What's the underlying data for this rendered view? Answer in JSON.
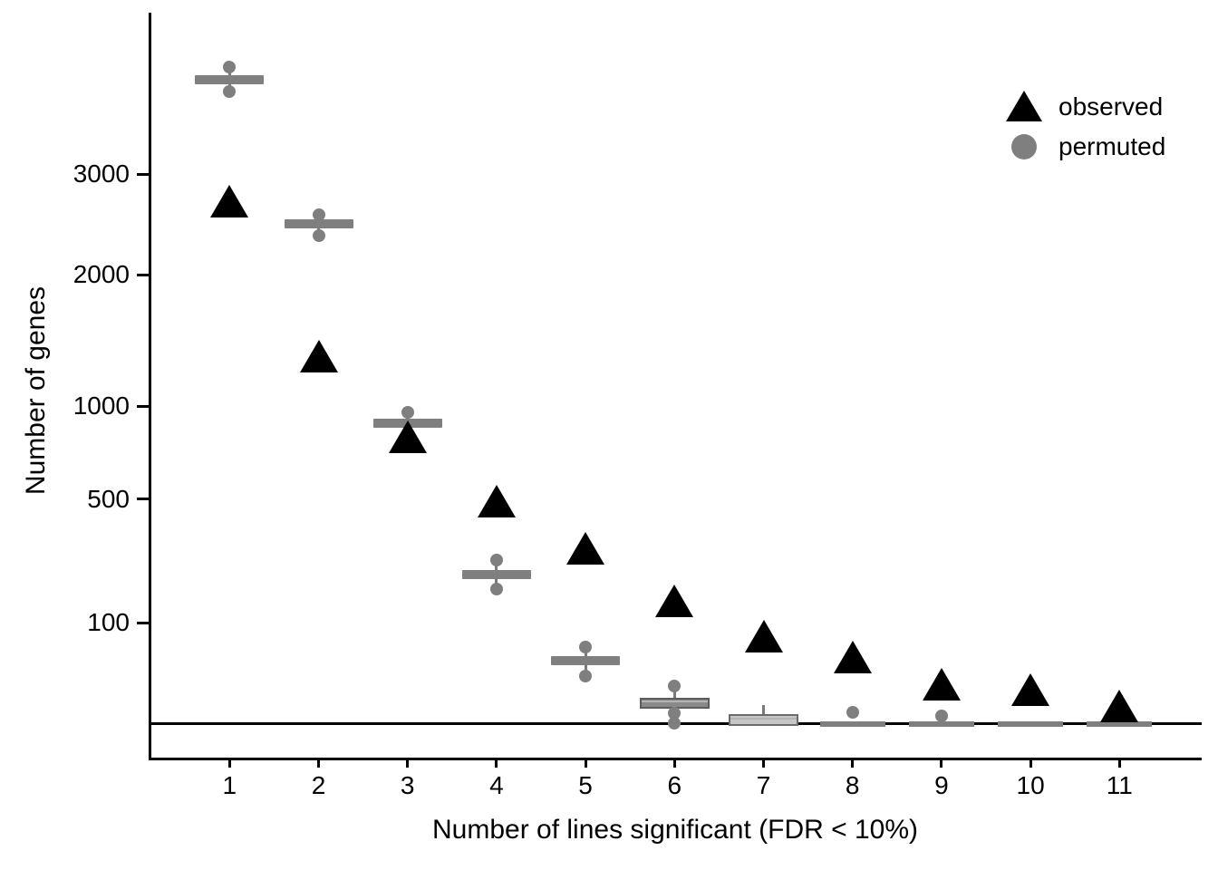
{
  "chart_data": {
    "type": "scatter",
    "title": "",
    "xlabel": "Number of lines significant (FDR < 10%)",
    "ylabel": "Number of genes",
    "yscale": "sqrt",
    "ylim": [
      0,
      5000
    ],
    "yticks": [
      100,
      500,
      1000,
      2000,
      3000
    ],
    "ytick_labels": [
      "100",
      "500",
      "1000",
      "2000",
      "3000"
    ],
    "x_categories": [
      "1",
      "2",
      "3",
      "4",
      "5",
      "6",
      "7",
      "8",
      "9",
      "10",
      "11"
    ],
    "grid": false,
    "hline": 0,
    "legend_position": "top-right-inside",
    "series": [
      {
        "name": "observed",
        "marker": "triangle",
        "color": "#000000",
        "values": [
          2715,
          1340,
          818,
          490,
          305,
          150,
          75,
          43,
          15,
          11,
          3
        ]
      },
      {
        "name": "permuted",
        "marker": "circle",
        "color": "#7f7f7f",
        "boxplots": [
          {
            "x": 1,
            "median": 4120,
            "box": null,
            "whisker": [
              3975,
              4290
            ],
            "outliers": [
              4290,
              3975
            ],
            "style": "bar"
          },
          {
            "x": 2,
            "median": 2480,
            "box": null,
            "whisker": [
              2365,
              2575
            ],
            "outliers": [
              2575,
              2365
            ],
            "style": "bar"
          },
          {
            "x": 3,
            "median": 895,
            "box": null,
            "whisker": [
              895,
              960
            ],
            "outliers": [
              960
            ],
            "style": "bar"
          },
          {
            "x": 4,
            "median": 219,
            "box": null,
            "whisker": [
              179,
              264
            ],
            "outliers": [
              264,
              179
            ],
            "style": "bar"
          },
          {
            "x": 5,
            "median": 39,
            "box": null,
            "whisker": [
              22,
              57
            ],
            "outliers": [
              57,
              22
            ],
            "style": "bar"
          },
          {
            "x": 6,
            "median": 4.8,
            "box": [
              3.1,
              6.4
            ],
            "whisker": [
              0,
              13.5
            ],
            "outliers": [
              13.5,
              1.0,
              0
            ],
            "style": "solid"
          },
          {
            "x": 7,
            "median": 0.2,
            "box": [
              0,
              0.9
            ],
            "whisker": [
              0,
              3.2
            ],
            "outliers": [],
            "style": "light"
          },
          {
            "x": 8,
            "median": 0,
            "box": null,
            "whisker": null,
            "outliers": [
              1.1
            ],
            "style": "flat"
          },
          {
            "x": 9,
            "median": 0,
            "box": null,
            "whisker": null,
            "outliers": [
              0.55
            ],
            "style": "flat"
          },
          {
            "x": 10,
            "median": 0,
            "box": null,
            "whisker": null,
            "outliers": [],
            "style": "flat"
          },
          {
            "x": 11,
            "median": 0,
            "box": null,
            "whisker": null,
            "outliers": [],
            "style": "flat"
          }
        ]
      }
    ]
  },
  "legend": {
    "items": [
      {
        "label": "observed",
        "marker": "triangle",
        "color": "#000000"
      },
      {
        "label": "permuted",
        "marker": "circle",
        "color": "#7f7f7f"
      }
    ]
  }
}
